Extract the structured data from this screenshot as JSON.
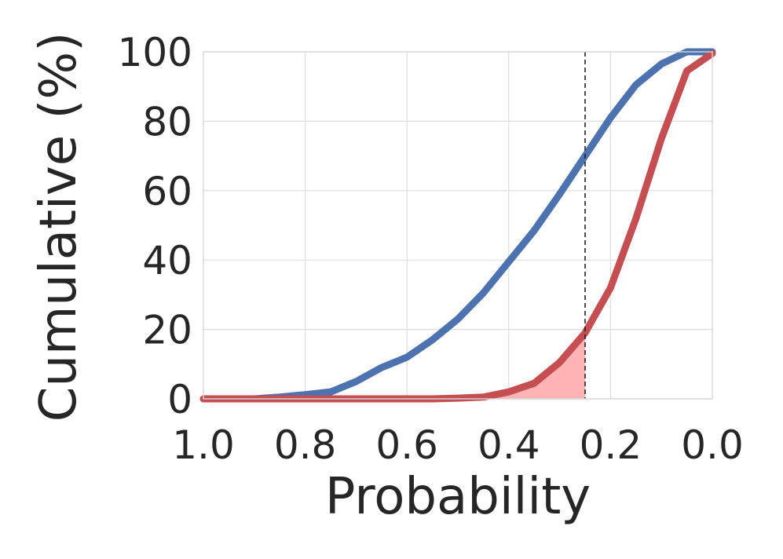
{
  "chart_data": {
    "type": "line",
    "title": "",
    "xlabel": "Probability",
    "ylabel": "Cumulative (%)",
    "xlim": [
      1.0,
      0.0
    ],
    "ylim": [
      0,
      100
    ],
    "x_reversed": true,
    "xticks": [
      1.0,
      0.8,
      0.6,
      0.4,
      0.2,
      0.0
    ],
    "xtick_labels": [
      "1.0",
      "0.8",
      "0.6",
      "0.4",
      "0.2",
      "0.0"
    ],
    "yticks": [
      0,
      20,
      40,
      60,
      80,
      100
    ],
    "ytick_labels": [
      "0",
      "20",
      "40",
      "60",
      "80",
      "100"
    ],
    "grid": true,
    "legend": "none",
    "reference_line": {
      "x": 0.25,
      "style": "dashed",
      "color": "#222222"
    },
    "shaded_region": {
      "series_index": 1,
      "from_x": 1.0,
      "to_x": 0.25,
      "color": "#ffb3b3"
    },
    "series": [
      {
        "color": "#4c72b0",
        "x": [
          1.0,
          0.95,
          0.9,
          0.85,
          0.8,
          0.75,
          0.7,
          0.65,
          0.6,
          0.55,
          0.5,
          0.45,
          0.4,
          0.35,
          0.3,
          0.25,
          0.2,
          0.15,
          0.1,
          0.05,
          0.0
        ],
        "y": [
          0,
          0,
          0,
          0.5,
          1.2,
          2,
          5,
          9,
          12,
          17,
          23,
          30.5,
          39.5,
          48.5,
          59,
          70,
          81,
          90.5,
          96.5,
          100,
          100
        ]
      },
      {
        "color": "#c44e52",
        "x": [
          1.0,
          0.95,
          0.9,
          0.85,
          0.8,
          0.75,
          0.7,
          0.65,
          0.6,
          0.55,
          0.5,
          0.45,
          0.4,
          0.35,
          0.3,
          0.25,
          0.2,
          0.15,
          0.1,
          0.05,
          0.0
        ],
        "y": [
          0,
          0,
          0,
          0,
          0,
          0,
          0,
          0,
          0,
          0,
          0.2,
          0.5,
          2,
          4.5,
          10.5,
          19,
          32,
          52,
          75,
          94.5,
          99.5
        ]
      }
    ]
  }
}
